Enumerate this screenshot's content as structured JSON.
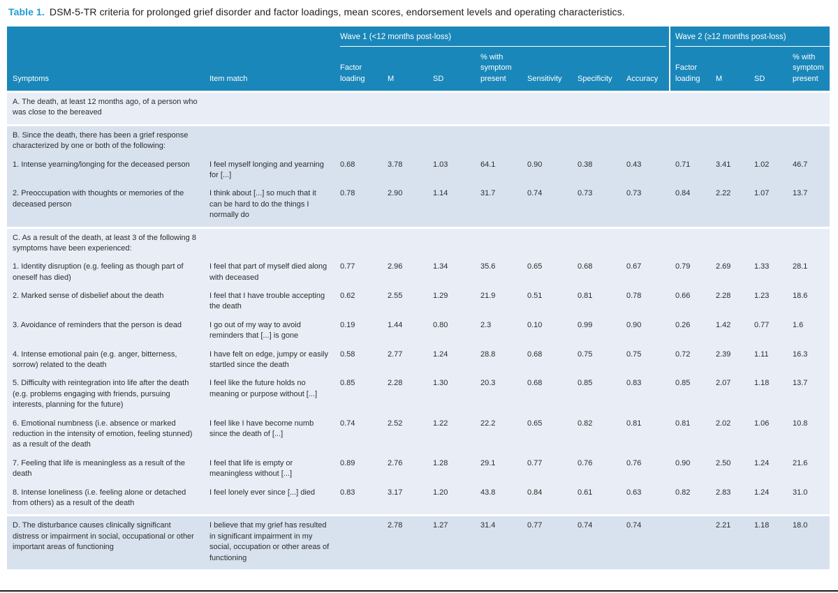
{
  "title": {
    "label": "Table 1.",
    "text": "DSM-5-TR criteria for prolonged grief disorder and factor loadings, mean scores, endorsement levels and operating characteristics."
  },
  "colors": {
    "header_background": "#1a87ba",
    "title_accent": "#1d9ad6",
    "section_light": "#e9eef6",
    "section_dark": "#d8e2ef",
    "header_text": "#ffffff",
    "body_text": "#2c2c2c"
  },
  "table": {
    "group_headers": [
      {
        "label": "Wave 1 (<12 months post-loss)"
      },
      {
        "label": "Wave 2 (≥12 months post-loss)"
      }
    ],
    "columns": [
      "Symptoms",
      "Item match",
      "Factor loading",
      "M",
      "SD",
      "% with symptom present",
      "Sensitivity",
      "Specificity",
      "Accuracy",
      "Factor loading",
      "M",
      "SD",
      "% with symptom present"
    ],
    "sections": [
      {
        "tone": "light",
        "header": "A. The death, at least 12 months ago, of a person who was close to the bereaved",
        "rows": []
      },
      {
        "tone": "dark",
        "header": "B. Since the death, there has been a grief response characterized by one or both of the following:",
        "rows": [
          {
            "symptom": "1. Intense yearning/longing for the deceased person",
            "item": "I feel myself longing and yearning for [...]",
            "values": [
              "0.68",
              "3.78",
              "1.03",
              "64.1",
              "0.90",
              "0.38",
              "0.43",
              "0.71",
              "3.41",
              "1.02",
              "46.7"
            ]
          },
          {
            "symptom": "2. Preoccupation with thoughts or memories of the deceased person",
            "item": "I think about [...] so much that it can be hard to do the things I normally do",
            "values": [
              "0.78",
              "2.90",
              "1.14",
              "31.7",
              "0.74",
              "0.73",
              "0.73",
              "0.84",
              "2.22",
              "1.07",
              "13.7"
            ]
          }
        ]
      },
      {
        "tone": "light",
        "header": "C. As a result of the death, at least 3 of the following 8 symptoms have been experienced:",
        "rows": [
          {
            "symptom": "1. Identity disruption (e.g. feeling as though part of oneself has died)",
            "item": "I feel that part of myself died along with deceased",
            "values": [
              "0.77",
              "2.96",
              "1.34",
              "35.6",
              "0.65",
              "0.68",
              "0.67",
              "0.79",
              "2.69",
              "1.33",
              "28.1"
            ]
          },
          {
            "symptom": "2. Marked sense of disbelief about the death",
            "item": "I feel that I have trouble accepting the death",
            "values": [
              "0.62",
              "2.55",
              "1.29",
              "21.9",
              "0.51",
              "0.81",
              "0.78",
              "0.66",
              "2.28",
              "1.23",
              "18.6"
            ]
          },
          {
            "symptom": "3. Avoidance of reminders that the person is dead",
            "item": "I go out of my way to avoid reminders that [...] is gone",
            "values": [
              "0.19",
              "1.44",
              "0.80",
              "2.3",
              "0.10",
              "0.99",
              "0.90",
              "0.26",
              "1.42",
              "0.77",
              "1.6"
            ]
          },
          {
            "symptom": "4. Intense emotional pain (e.g. anger, bitterness, sorrow) related to the death",
            "item": "I have felt on edge, jumpy or easily startled since the death",
            "values": [
              "0.58",
              "2.77",
              "1.24",
              "28.8",
              "0.68",
              "0.75",
              "0.75",
              "0.72",
              "2.39",
              "1.11",
              "16.3"
            ]
          },
          {
            "symptom": "5. Difficulty with reintegration into life after the death (e.g. problems engaging with friends, pursuing interests, planning for the future)",
            "item": "I feel like the future holds no meaning or purpose without [...]",
            "values": [
              "0.85",
              "2.28",
              "1.30",
              "20.3",
              "0.68",
              "0.85",
              "0.83",
              "0.85",
              "2.07",
              "1.18",
              "13.7"
            ]
          },
          {
            "symptom": "6. Emotional numbness (i.e. absence or marked reduction in the intensity of emotion, feeling stunned) as a result of the death",
            "item": "I feel like I have become numb since the death of [...]",
            "values": [
              "0.74",
              "2.52",
              "1.22",
              "22.2",
              "0.65",
              "0.82",
              "0.81",
              "0.81",
              "2.02",
              "1.06",
              "10.8"
            ]
          },
          {
            "symptom": "7. Feeling that life is meaningless as a result of the death",
            "item": "I feel that life is empty or meaningless without [...]",
            "values": [
              "0.89",
              "2.76",
              "1.28",
              "29.1",
              "0.77",
              "0.76",
              "0.76",
              "0.90",
              "2.50",
              "1.24",
              "21.6"
            ]
          },
          {
            "symptom": "8. Intense loneliness (i.e. feeling alone or detached from others) as a result of the death",
            "item": "I feel lonely ever since [...] died",
            "values": [
              "0.83",
              "3.17",
              "1.20",
              "43.8",
              "0.84",
              "0.61",
              "0.63",
              "0.82",
              "2.83",
              "1.24",
              "31.0"
            ]
          }
        ]
      },
      {
        "tone": "dark",
        "header": null,
        "rows": [
          {
            "symptom": "D. The disturbance causes clinically significant distress or impairment in social, occupational or other important areas of functioning",
            "item": "I believe that my grief has resulted in significant impairment in my social, occupation or other areas of functioning",
            "values": [
              "",
              "2.78",
              "1.27",
              "31.4",
              "0.77",
              "0.74",
              "0.74",
              "",
              "2.21",
              "1.18",
              "18.0"
            ]
          }
        ]
      }
    ]
  }
}
